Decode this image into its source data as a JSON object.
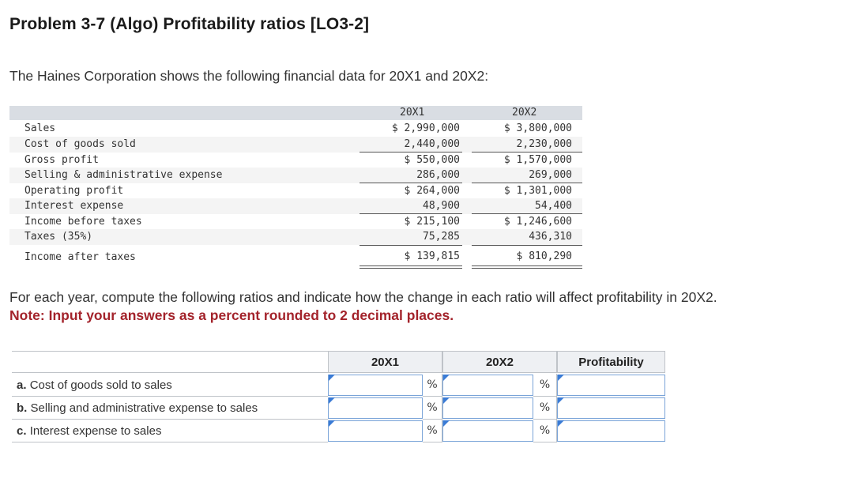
{
  "title": "Problem 3-7 (Algo) Profitability ratios [LO3-2]",
  "intro": "The Haines Corporation shows the following financial data for 20X1 and 20X2:",
  "financials": {
    "headers": [
      "20X1",
      "20X2"
    ],
    "rows": [
      {
        "label": "Sales",
        "y1": "$ 2,990,000",
        "y2": "$ 3,800,000"
      },
      {
        "label": "Cost of goods sold",
        "y1": "2,440,000",
        "y2": "2,230,000"
      },
      {
        "label": "Gross profit",
        "y1": "$ 550,000",
        "y2": "$ 1,570,000"
      },
      {
        "label": "Selling & administrative expense",
        "y1": "286,000",
        "y2": "269,000"
      },
      {
        "label": "Operating profit",
        "y1": "$ 264,000",
        "y2": "$ 1,301,000"
      },
      {
        "label": "Interest expense",
        "y1": "48,900",
        "y2": "54,400"
      },
      {
        "label": "Income before taxes",
        "y1": "$ 215,100",
        "y2": "$ 1,246,600"
      },
      {
        "label": "Taxes (35%)",
        "y1": "75,285",
        "y2": "436,310"
      },
      {
        "label": "Income after taxes",
        "y1": "$ 139,815",
        "y2": "$ 810,290"
      }
    ]
  },
  "instructions": "For each year, compute the following ratios and indicate how the change in each ratio will affect profitability in 20X2.",
  "note": "Note: Input your answers as a percent rounded to 2 decimal places.",
  "answer_table": {
    "headers": {
      "y1": "20X1",
      "y2": "20X2",
      "profitability": "Profitability"
    },
    "pct_symbol": "%",
    "rows": [
      {
        "prefix": "a.",
        "label": "Cost of goods sold to sales",
        "y1_value": "",
        "y2_value": "",
        "profitability_value": ""
      },
      {
        "prefix": "b.",
        "label": "Selling and administrative expense to sales",
        "y1_value": "",
        "y2_value": "",
        "profitability_value": ""
      },
      {
        "prefix": "c.",
        "label": "Interest expense to sales",
        "y1_value": "",
        "y2_value": "",
        "profitability_value": ""
      }
    ]
  },
  "colors": {
    "note_red": "#a3232b",
    "input_border": "#7aa4d8",
    "flag_blue": "#3a7bd5",
    "header_gray": "#d9dde3"
  }
}
